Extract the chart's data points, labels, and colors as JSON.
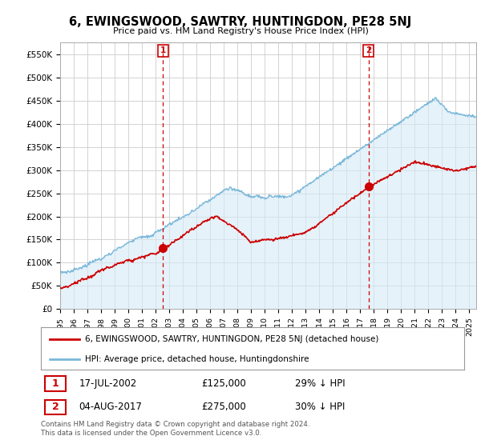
{
  "title": "6, EWINGSWOOD, SAWTRY, HUNTINGDON, PE28 5NJ",
  "subtitle": "Price paid vs. HM Land Registry's House Price Index (HPI)",
  "ylabel_ticks": [
    "£0",
    "£50K",
    "£100K",
    "£150K",
    "£200K",
    "£250K",
    "£300K",
    "£350K",
    "£400K",
    "£450K",
    "£500K",
    "£550K"
  ],
  "ytick_values": [
    0,
    50000,
    100000,
    150000,
    200000,
    250000,
    300000,
    350000,
    400000,
    450000,
    500000,
    550000
  ],
  "ylim": [
    0,
    575000
  ],
  "hpi_color": "#7ab8d9",
  "hpi_fill_color": "#d6eaf8",
  "price_color": "#cc0000",
  "vline_color": "#cc0000",
  "background_color": "#ffffff",
  "grid_color": "#cccccc",
  "legend_label_price": "6, EWINGSWOOD, SAWTRY, HUNTINGDON, PE28 5NJ (detached house)",
  "legend_label_hpi": "HPI: Average price, detached house, Huntingdonshire",
  "sale1_date": "17-JUL-2002",
  "sale1_price": 125000,
  "sale1_pct": "29% ↓ HPI",
  "sale1_x": 2002.54,
  "sale2_date": "04-AUG-2017",
  "sale2_price": 275000,
  "sale2_pct": "30% ↓ HPI",
  "sale2_x": 2017.6,
  "footer": "Contains HM Land Registry data © Crown copyright and database right 2024.\nThis data is licensed under the Open Government Licence v3.0.",
  "xlim_start": 1995.0,
  "xlim_end": 2025.5,
  "n_points": 700
}
